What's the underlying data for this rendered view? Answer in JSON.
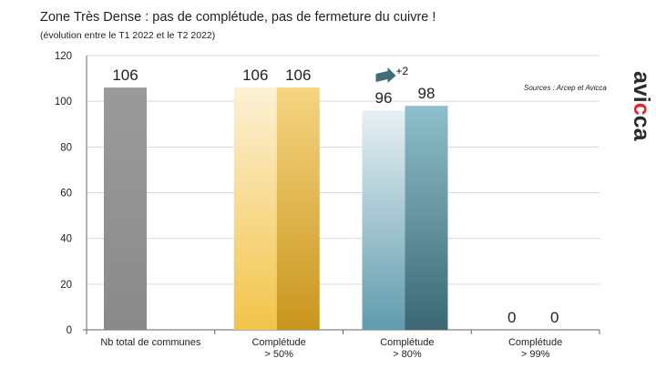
{
  "header": {
    "title": "Zone Très Dense : pas de complétude, pas de fermeture du cuivre !",
    "subtitle": "(évolution entre le T1 2022 et le T2 2022)"
  },
  "source": "Sources : Arcep et Avicca",
  "logo": {
    "prefix": "avi",
    "highlight": "c",
    "suffix": "ca",
    "highlight_color": "#e0232d"
  },
  "chart_data": {
    "type": "bar",
    "title": "Zone Très Dense : pas de complétude, pas de fermeture du cuivre !",
    "subtitle": "(évolution entre le T1 2022 et le T2 2022)",
    "categories": [
      "Nb total de communes",
      "Complétude\n> 50%",
      "Complétude\n> 80%",
      "Complétude\n> 99%"
    ],
    "bars": [
      [
        {
          "value": 106,
          "color_top": "#9a9a9a",
          "color_bottom": "#8a8a8a",
          "label": "106"
        }
      ],
      [
        {
          "value": 106,
          "color_top": "#fdf1d6",
          "color_bottom": "#f2c449",
          "label": "106"
        },
        {
          "value": 106,
          "color_top": "#f6d481",
          "color_bottom": "#c9961d",
          "label": "106"
        }
      ],
      [
        {
          "value": 96,
          "color_top": "#e8f0f3",
          "color_bottom": "#5f9cae",
          "label": "96"
        },
        {
          "value": 98,
          "color_top": "#8fbfcc",
          "color_bottom": "#3c6873",
          "label": "98"
        }
      ],
      [
        {
          "value": 0,
          "color_top": "#cccccc",
          "color_bottom": "#cccccc",
          "label": "0"
        },
        {
          "value": 0,
          "color_top": "#cccccc",
          "color_bottom": "#cccccc",
          "label": "0"
        }
      ]
    ],
    "annotation": {
      "text": "+2",
      "arrow_color": "#3f6e79"
    },
    "yticks": [
      0,
      20,
      40,
      60,
      80,
      100,
      120
    ],
    "ylim": [
      0,
      120
    ],
    "grid": true,
    "xlabel": "",
    "ylabel": ""
  }
}
